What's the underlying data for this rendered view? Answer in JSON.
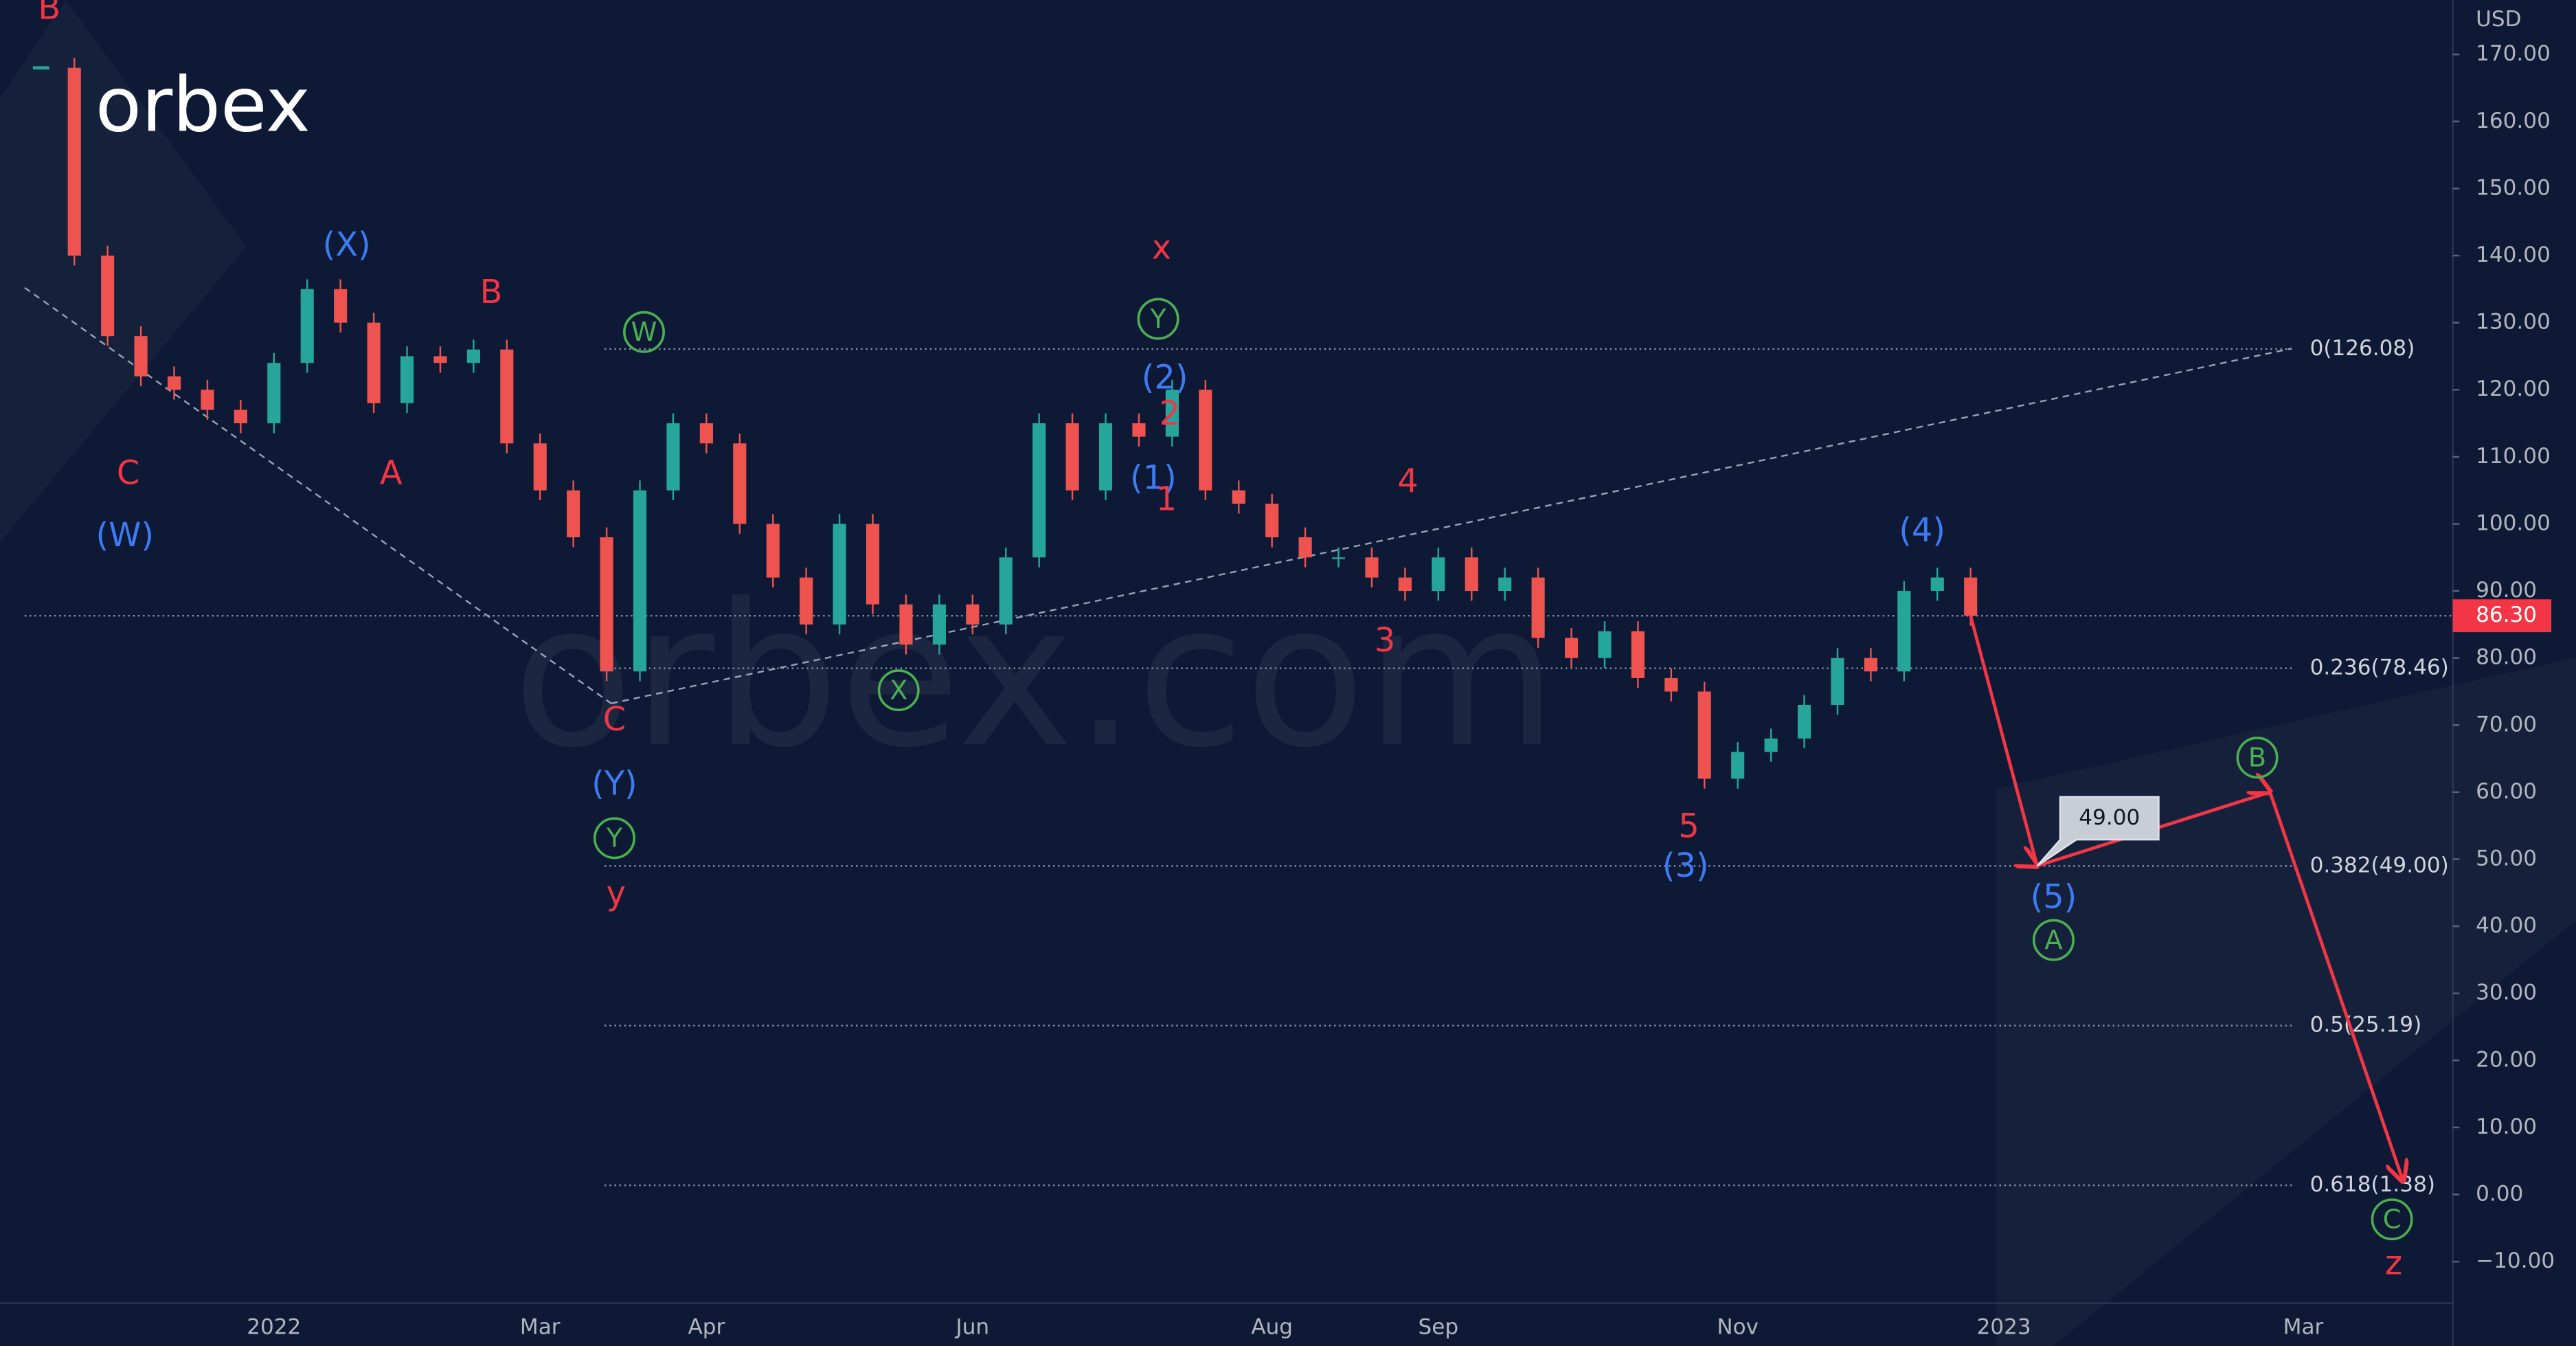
{
  "chart_data": {
    "type": "candlestick",
    "logo": "orbex",
    "watermark": "orbex.com",
    "currency": "USD",
    "categories": [
      null,
      null,
      null,
      null,
      null,
      null,
      null,
      "2022",
      null,
      null,
      null,
      null,
      null,
      null,
      null,
      "Mar",
      null,
      null,
      null,
      null,
      "Apr",
      null,
      null,
      null,
      null,
      null,
      null,
      null,
      "Jun",
      null,
      null,
      null,
      null,
      null,
      null,
      null,
      null,
      "Aug",
      null,
      null,
      null,
      null,
      "Sep",
      null,
      null,
      null,
      null,
      null,
      null,
      null,
      null,
      "Nov",
      null,
      null,
      null,
      null,
      null,
      null,
      null,
      "2023",
      null,
      null,
      null,
      null,
      null,
      null,
      null,
      null,
      "Mar",
      null,
      null,
      null
    ],
    "series": [
      {
        "up_color": "#26a69a",
        "down_color": "#ef5350",
        "values": [
          168,
          140,
          128,
          122,
          120,
          117,
          115,
          124,
          135,
          130,
          118,
          125,
          124,
          126,
          112,
          105,
          98,
          78,
          105,
          115,
          112,
          100,
          92,
          85,
          100,
          88,
          82,
          88,
          85,
          95,
          115,
          105,
          115,
          113,
          120,
          105,
          103,
          98,
          95,
          95,
          92,
          90,
          95,
          90,
          92,
          83,
          80,
          84,
          77,
          75,
          62,
          66,
          68,
          73,
          80,
          78,
          90,
          92,
          86.3,
          null,
          null,
          null,
          null,
          null,
          null,
          null,
          null,
          null,
          null,
          null,
          null,
          null
        ]
      },
      {
        "color": "#f23645",
        "values": [
          null,
          null,
          null,
          null,
          null,
          null,
          null,
          null,
          null,
          null,
          null,
          null,
          null,
          null,
          null,
          null,
          null,
          null,
          null,
          null,
          null,
          null,
          null,
          null,
          null,
          null,
          null,
          null,
          null,
          null,
          null,
          null,
          null,
          null,
          null,
          null,
          null,
          null,
          null,
          null,
          null,
          null,
          null,
          null,
          null,
          null,
          null,
          null,
          null,
          null,
          null,
          null,
          null,
          null,
          null,
          null,
          null,
          null,
          86.3,
          null,
          49,
          null,
          null,
          null,
          null,
          null,
          null,
          60,
          null,
          null,
          null,
          2
        ]
      }
    ],
    "ylim": [
      -16.2,
      178.1
    ],
    "yticks": [
      {
        "value": 170,
        "label": "170.00"
      },
      {
        "value": 160,
        "label": "160.00"
      },
      {
        "value": 150,
        "label": "150.00"
      },
      {
        "value": 140,
        "label": "140.00"
      },
      {
        "value": 130,
        "label": "130.00"
      },
      {
        "value": 120,
        "label": "120.00"
      },
      {
        "value": 110,
        "label": "110.00"
      },
      {
        "value": 100,
        "label": "100.00"
      },
      {
        "value": 90,
        "label": "90.00"
      },
      {
        "value": 80,
        "label": "80.00"
      },
      {
        "value": 70,
        "label": "70.00"
      },
      {
        "value": 60,
        "label": "60.00"
      },
      {
        "value": 50,
        "label": "50.00"
      },
      {
        "value": 40,
        "label": "40.00"
      },
      {
        "value": 30,
        "label": "30.00"
      },
      {
        "value": 20,
        "label": "20.00"
      },
      {
        "value": 10,
        "label": "10.00"
      },
      {
        "value": 0,
        "label": "0.00"
      },
      {
        "value": -10,
        "label": "−10.00"
      }
    ],
    "current_price": {
      "value": 86.3,
      "label": "86.30",
      "color": "#f23645"
    },
    "callout": {
      "value": 49,
      "label": "49.00"
    },
    "fib_levels": [
      {
        "value": 126.08,
        "label": "0(126.08)"
      },
      {
        "value": 78.46,
        "label": "0.236(78.46)"
      },
      {
        "value": 49,
        "label": "0.382(49.00)"
      },
      {
        "value": 25.19,
        "label": "0.5(25.19)"
      },
      {
        "value": 1.38,
        "label": "0.618(1.38)"
      }
    ],
    "wave_labels": [
      {
        "text": "B",
        "color": "#f23645"
      },
      {
        "text": "C",
        "color": "#f23645"
      },
      {
        "text": "(W)",
        "color": "#3d7bf5"
      },
      {
        "text": "(X)",
        "color": "#3d7bf5"
      },
      {
        "text": "B",
        "color": "#f23645"
      },
      {
        "text": "A",
        "color": "#f23645"
      },
      {
        "text": "W",
        "color": "#4caf50",
        "circled": true
      },
      {
        "text": "C",
        "color": "#f23645"
      },
      {
        "text": "(Y)",
        "color": "#3d7bf5"
      },
      {
        "text": "Y",
        "color": "#4caf50",
        "circled": true
      },
      {
        "text": "y",
        "color": "#f23645"
      },
      {
        "text": "X",
        "color": "#4caf50",
        "circled": true
      },
      {
        "text": "x",
        "color": "#f23645"
      },
      {
        "text": "Y",
        "color": "#4caf50",
        "circled": true
      },
      {
        "text": "(2)",
        "color": "#3d7bf5"
      },
      {
        "text": "2",
        "color": "#f23645"
      },
      {
        "text": "(1)",
        "color": "#3d7bf5"
      },
      {
        "text": "1",
        "color": "#f23645"
      },
      {
        "text": "4",
        "color": "#f23645"
      },
      {
        "text": "3",
        "color": "#f23645"
      },
      {
        "text": "5",
        "color": "#f23645"
      },
      {
        "text": "(3)",
        "color": "#3d7bf5"
      },
      {
        "text": "(4)",
        "color": "#3d7bf5"
      },
      {
        "text": "(5)",
        "color": "#3d7bf5"
      },
      {
        "text": "A",
        "color": "#4caf50",
        "circled": true
      },
      {
        "text": "B",
        "color": "#4caf50",
        "circled": true
      },
      {
        "text": "C",
        "color": "#4caf50",
        "circled": true
      },
      {
        "text": "z",
        "color": "#f23645"
      }
    ]
  }
}
